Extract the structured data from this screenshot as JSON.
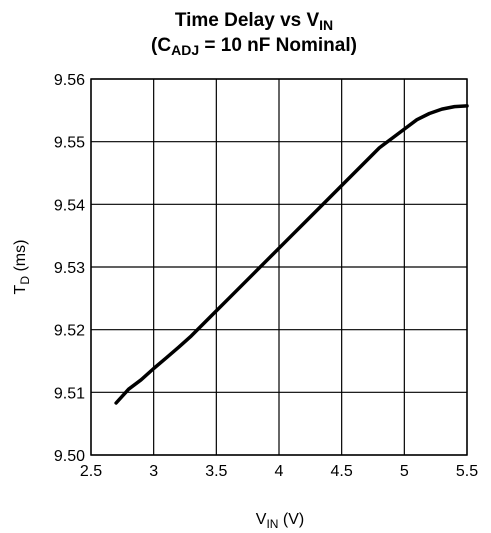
{
  "chart_data": {
    "type": "line",
    "title": {
      "line1": {
        "main": "Time Delay vs V",
        "sub": "IN"
      },
      "line2": {
        "prefix": "(C",
        "sub": "ADJ",
        "suffix": " = 10 nF Nominal)"
      }
    },
    "xlabel": {
      "main": "V",
      "sub": "IN",
      "suffix": " (V)"
    },
    "ylabel": {
      "main": "T",
      "sub": "D",
      "suffix": " (ms)"
    },
    "xlim": [
      2.5,
      5.5
    ],
    "ylim": [
      9.5,
      9.56
    ],
    "xticks": [
      "2.5",
      "3",
      "3.5",
      "4",
      "4.5",
      "5",
      "5.5"
    ],
    "yticks": [
      "9.50",
      "9.51",
      "9.52",
      "9.53",
      "9.54",
      "9.55",
      "9.56"
    ],
    "grid": true,
    "line_color": "#000000",
    "series": [
      {
        "x": [
          2.7,
          2.8,
          2.9,
          3.0,
          3.1,
          3.2,
          3.3,
          3.4,
          3.5,
          3.6,
          3.7,
          3.8,
          3.9,
          4.0,
          4.1,
          4.2,
          4.3,
          4.4,
          4.5,
          4.6,
          4.7,
          4.8,
          4.9,
          5.0,
          5.1,
          5.2,
          5.3,
          5.4,
          5.5
        ],
        "y": [
          9.5083,
          9.5105,
          9.512,
          9.5138,
          9.5155,
          9.5172,
          9.519,
          9.521,
          9.523,
          9.525,
          9.527,
          9.529,
          9.531,
          9.533,
          9.535,
          9.537,
          9.539,
          9.541,
          9.543,
          9.545,
          9.547,
          9.549,
          9.5505,
          9.552,
          9.5535,
          9.5545,
          9.5552,
          9.5556,
          9.5557
        ]
      }
    ]
  }
}
